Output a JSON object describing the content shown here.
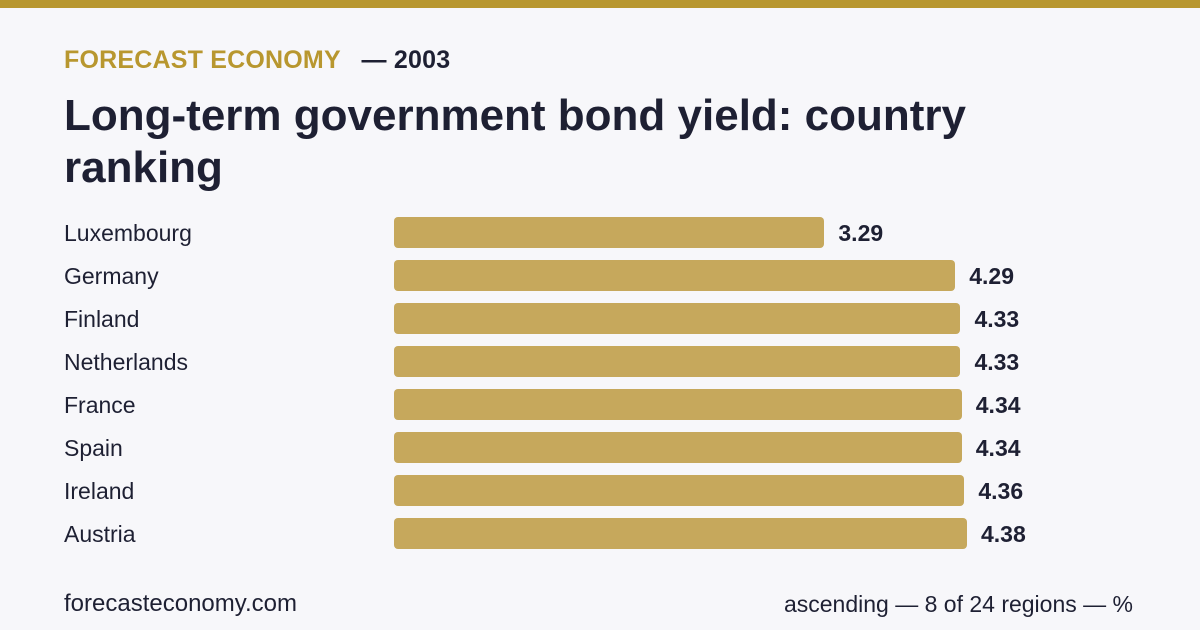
{
  "header": {
    "brand": "FORECAST ECONOMY",
    "year": "— 2003",
    "title": "Long-term government bond yield: country ranking"
  },
  "footer": {
    "site": "forecasteconomy.com",
    "note": "ascending — 8 of 24 regions — %"
  },
  "colors": {
    "accent": "#b8972f",
    "bar": "#c6a85c",
    "text": "#1e2033",
    "background": "#f7f7fa"
  },
  "chart_data": {
    "type": "bar",
    "orientation": "horizontal",
    "categories": [
      "Luxembourg",
      "Germany",
      "Finland",
      "Netherlands",
      "France",
      "Spain",
      "Ireland",
      "Austria"
    ],
    "values": [
      3.29,
      4.29,
      4.33,
      4.33,
      4.34,
      4.34,
      4.36,
      4.38
    ],
    "value_labels": [
      "3.29",
      "4.29",
      "4.33",
      "4.33",
      "4.34",
      "4.34",
      "4.36",
      "4.38"
    ],
    "xlim": [
      0,
      4.38
    ],
    "grid": false
  }
}
